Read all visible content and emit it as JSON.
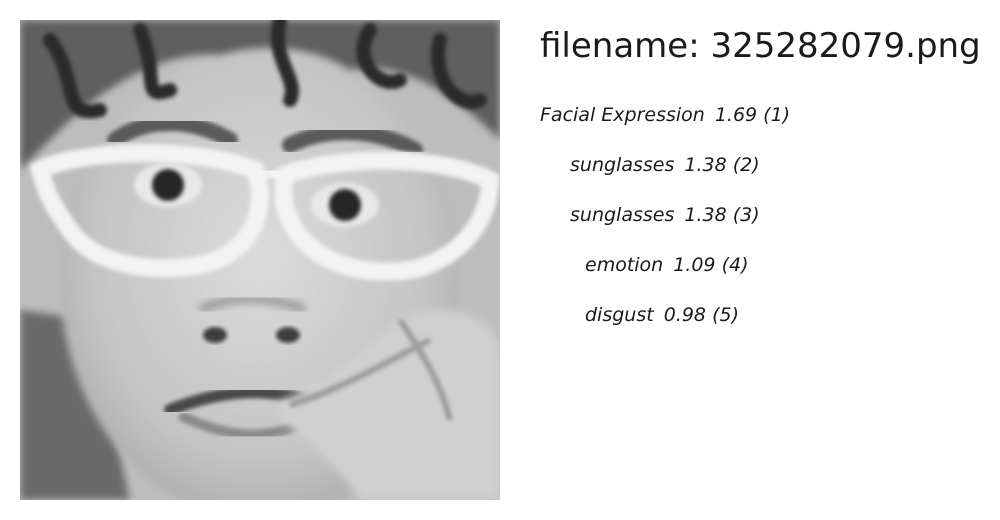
{
  "image": {
    "alt_icon": "face-photo-grayscale"
  },
  "filename": {
    "text": "filename: 325282079.png"
  },
  "results": [
    {
      "label": "Facial Expression",
      "score": "1.69",
      "rank": "(1)",
      "indent": 0
    },
    {
      "label": "sunglasses",
      "score": "1.38",
      "rank": "(2)",
      "indent": 1
    },
    {
      "label": "sunglasses",
      "score": "1.38",
      "rank": "(3)",
      "indent": 1
    },
    {
      "label": "emotion",
      "score": "1.09",
      "rank": "(4)",
      "indent": 2
    },
    {
      "label": "disgust",
      "score": "0.98",
      "rank": "(5)",
      "indent": 2
    }
  ]
}
